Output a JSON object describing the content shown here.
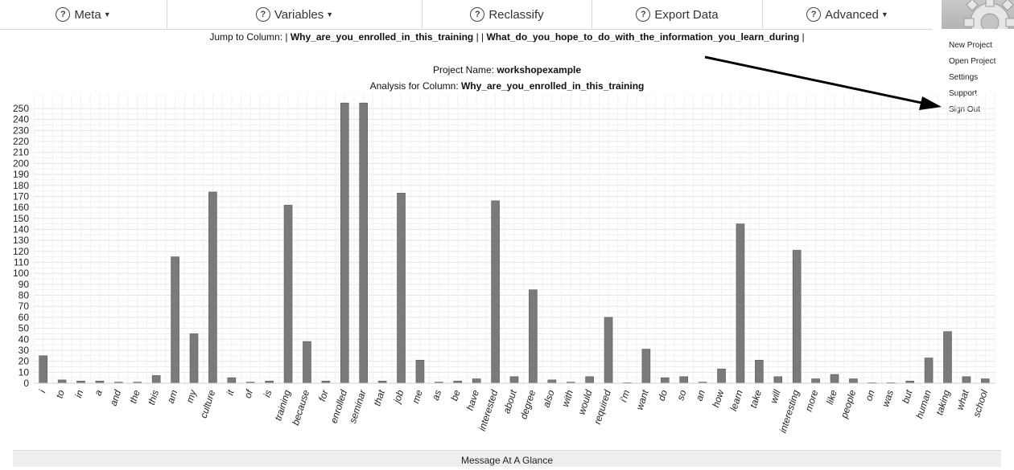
{
  "nav": {
    "items": [
      {
        "label": "Meta",
        "caret": true
      },
      {
        "label": "Variables",
        "caret": true
      },
      {
        "label": "Reclassify",
        "caret": false
      },
      {
        "label": "Export Data",
        "caret": false
      },
      {
        "label": "Advanced",
        "caret": true
      }
    ]
  },
  "jump": {
    "prefix": "Jump to Column: | ",
    "col1": "Why_are_you_enrolled_in_this_training",
    "sep": " | | ",
    "col2": "What_do_you_hope_to_do_with_the_information_you_learn_during",
    "suffix": " |"
  },
  "project": {
    "name_label": "Project Name: ",
    "name": "workshopexample",
    "analysis_label": "Analysis for Column: ",
    "analysis_column": "Why_are_you_enrolled_in_this_training"
  },
  "menu": {
    "items": [
      "New Project",
      "Open Project",
      "Settings",
      "Support",
      "Sign Out"
    ]
  },
  "bottom_bar": {
    "label": "Message At A Glance"
  },
  "chart_data": {
    "type": "bar",
    "categories": [
      "i",
      "to",
      "in",
      "a",
      "and",
      "the",
      "this",
      "am",
      "my",
      "culture",
      "it",
      "of",
      "is",
      "training",
      "because",
      "for",
      "enrolled",
      "seminar",
      "that",
      "job",
      "me",
      "as",
      "be",
      "have",
      "interested",
      "about",
      "degree",
      "also",
      "with",
      "would",
      "required",
      "i'm",
      "want",
      "do",
      "so",
      "an",
      "how",
      "learn",
      "take",
      "will",
      "interesting",
      "more",
      "like",
      "people",
      "on",
      "was",
      "but",
      "human",
      "taking",
      "what",
      "school"
    ],
    "values": [
      25,
      3,
      2,
      2,
      1,
      1,
      7,
      115,
      45,
      174,
      5,
      1,
      2,
      162,
      38,
      2,
      260,
      260,
      2,
      173,
      21,
      1,
      2,
      4,
      166,
      6,
      85,
      3,
      1,
      6,
      60,
      0.5,
      31,
      5,
      6,
      1,
      13,
      145,
      21,
      6,
      121,
      4,
      8,
      4,
      0.5,
      0.5,
      2,
      23,
      47,
      6,
      4
    ],
    "ylim": [
      0,
      250
    ],
    "yticks": [
      0,
      10,
      20,
      30,
      40,
      50,
      60,
      70,
      80,
      90,
      100,
      110,
      120,
      130,
      140,
      150,
      160,
      170,
      180,
      190,
      200,
      210,
      220,
      230,
      240,
      250
    ],
    "bar_color": "#7a7a7a",
    "grid": true
  }
}
